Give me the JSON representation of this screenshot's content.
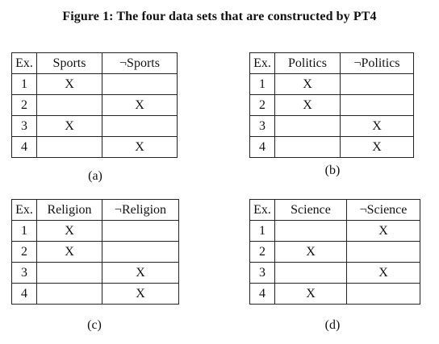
{
  "figure": {
    "title": "Figure 1: The four data sets that are constructed by PT4"
  },
  "tables": [
    {
      "caption": "(a)",
      "headers": [
        "Ex.",
        "Sports",
        "¬Sports"
      ],
      "rows": [
        [
          "1",
          "X",
          ""
        ],
        [
          "2",
          "",
          "X"
        ],
        [
          "3",
          "X",
          ""
        ],
        [
          "4",
          "",
          "X"
        ]
      ]
    },
    {
      "caption": "(b)",
      "headers": [
        "Ex.",
        "Politics",
        "¬Politics"
      ],
      "rows": [
        [
          "1",
          "X",
          ""
        ],
        [
          "2",
          "X",
          ""
        ],
        [
          "3",
          "",
          "X"
        ],
        [
          "4",
          "",
          "X"
        ]
      ]
    },
    {
      "caption": "(c)",
      "headers": [
        "Ex.",
        "Religion",
        "¬Religion"
      ],
      "rows": [
        [
          "1",
          "X",
          ""
        ],
        [
          "2",
          "X",
          ""
        ],
        [
          "3",
          "",
          "X"
        ],
        [
          "4",
          "",
          "X"
        ]
      ]
    },
    {
      "caption": "(d)",
      "headers": [
        "Ex.",
        "Science",
        "¬Science"
      ],
      "rows": [
        [
          "1",
          "",
          "X"
        ],
        [
          "2",
          "X",
          ""
        ],
        [
          "3",
          "",
          "X"
        ],
        [
          "4",
          "X",
          ""
        ]
      ]
    }
  ]
}
